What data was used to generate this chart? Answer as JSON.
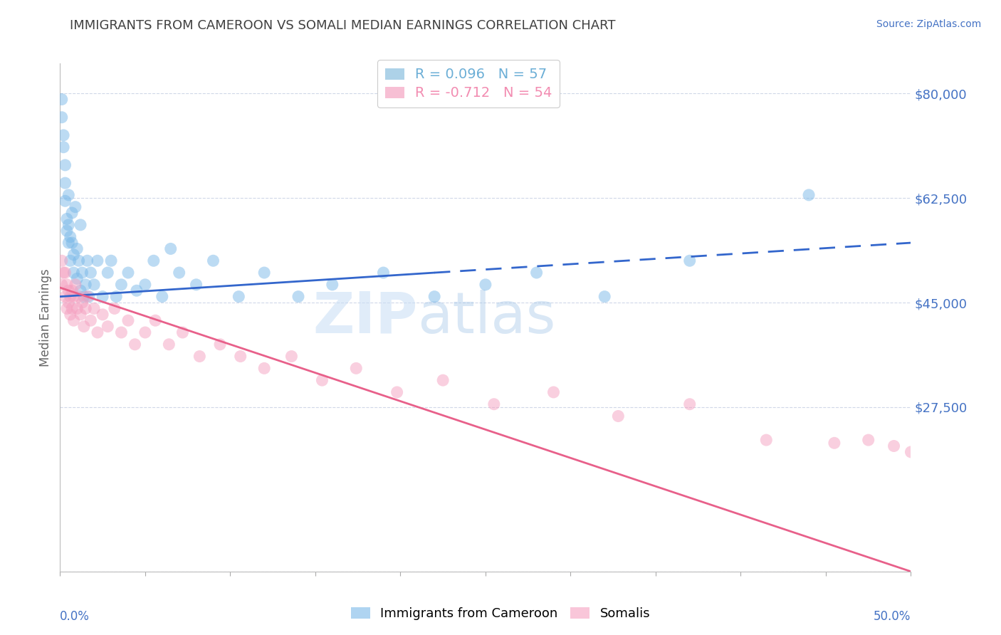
{
  "title": "IMMIGRANTS FROM CAMEROON VS SOMALI MEDIAN EARNINGS CORRELATION CHART",
  "source": "Source: ZipAtlas.com",
  "ylabel": "Median Earnings",
  "xlim": [
    0.0,
    0.5
  ],
  "ylim": [
    0,
    85000
  ],
  "yticks": [
    0,
    27500,
    45000,
    62500,
    80000
  ],
  "ytick_labels": [
    "",
    "$27,500",
    "$45,000",
    "$62,500",
    "$80,000"
  ],
  "xtick_left_label": "0.0%",
  "xtick_right_label": "50.0%",
  "legend_entries": [
    {
      "label": "R = 0.096   N = 57",
      "color": "#6baed6"
    },
    {
      "label": "R = -0.712   N = 54",
      "color": "#f28cb1"
    }
  ],
  "legend_series": [
    "Immigrants from Cameroon",
    "Somalis"
  ],
  "watermark_zip": "ZIP",
  "watermark_atlas": "atlas",
  "background_color": "#ffffff",
  "grid_color": "#d0d8e8",
  "axis_color": "#4472c4",
  "title_color": "#404040",
  "source_color": "#4472c4",
  "blue_scatter_color": "#7ab8e8",
  "pink_scatter_color": "#f5a0c0",
  "blue_line_color": "#3366cc",
  "pink_line_color": "#e8608a",
  "blue_scatter_alpha": 0.5,
  "pink_scatter_alpha": 0.5,
  "scatter_size": 150,
  "cameroon_x": [
    0.001,
    0.001,
    0.002,
    0.002,
    0.003,
    0.003,
    0.003,
    0.004,
    0.004,
    0.005,
    0.005,
    0.005,
    0.006,
    0.006,
    0.007,
    0.007,
    0.008,
    0.008,
    0.009,
    0.01,
    0.01,
    0.011,
    0.012,
    0.012,
    0.013,
    0.014,
    0.015,
    0.016,
    0.017,
    0.018,
    0.02,
    0.022,
    0.025,
    0.028,
    0.03,
    0.033,
    0.036,
    0.04,
    0.045,
    0.05,
    0.055,
    0.06,
    0.065,
    0.07,
    0.08,
    0.09,
    0.105,
    0.12,
    0.14,
    0.16,
    0.19,
    0.22,
    0.25,
    0.28,
    0.32,
    0.37,
    0.44
  ],
  "cameroon_y": [
    79000,
    76000,
    73000,
    71000,
    68000,
    65000,
    62000,
    59000,
    57000,
    55000,
    63000,
    58000,
    56000,
    52000,
    60000,
    55000,
    53000,
    50000,
    61000,
    54000,
    49000,
    52000,
    47000,
    58000,
    50000,
    46000,
    48000,
    52000,
    46000,
    50000,
    48000,
    52000,
    46000,
    50000,
    52000,
    46000,
    48000,
    50000,
    47000,
    48000,
    52000,
    46000,
    54000,
    50000,
    48000,
    52000,
    46000,
    50000,
    46000,
    48000,
    50000,
    46000,
    48000,
    50000,
    46000,
    52000,
    63000
  ],
  "somali_x": [
    0.001,
    0.001,
    0.002,
    0.003,
    0.003,
    0.004,
    0.004,
    0.005,
    0.005,
    0.006,
    0.006,
    0.007,
    0.007,
    0.008,
    0.008,
    0.009,
    0.01,
    0.011,
    0.012,
    0.013,
    0.014,
    0.015,
    0.016,
    0.018,
    0.02,
    0.022,
    0.025,
    0.028,
    0.032,
    0.036,
    0.04,
    0.044,
    0.05,
    0.056,
    0.064,
    0.072,
    0.082,
    0.094,
    0.106,
    0.12,
    0.136,
    0.154,
    0.174,
    0.198,
    0.225,
    0.255,
    0.29,
    0.328,
    0.37,
    0.415,
    0.455,
    0.475,
    0.49,
    0.5
  ],
  "somali_y": [
    52000,
    48000,
    50000,
    46000,
    50000,
    44000,
    48000,
    45000,
    47000,
    43000,
    46000,
    44000,
    47000,
    42000,
    46000,
    48000,
    44000,
    46000,
    43000,
    45000,
    41000,
    44000,
    46000,
    42000,
    44000,
    40000,
    43000,
    41000,
    44000,
    40000,
    42000,
    38000,
    40000,
    42000,
    38000,
    40000,
    36000,
    38000,
    36000,
    34000,
    36000,
    32000,
    34000,
    30000,
    32000,
    28000,
    30000,
    26000,
    28000,
    22000,
    21500,
    22000,
    21000,
    20000
  ],
  "blue_trend_x0": 0.0,
  "blue_trend_y0": 46000,
  "blue_trend_x1_solid": 0.22,
  "blue_trend_y1_solid": 50000,
  "blue_trend_x1_dash": 0.5,
  "blue_trend_y1_dash": 55000,
  "pink_trend_x0": 0.0,
  "pink_trend_y0": 47500,
  "pink_trend_x1": 0.5,
  "pink_trend_y1": 0
}
